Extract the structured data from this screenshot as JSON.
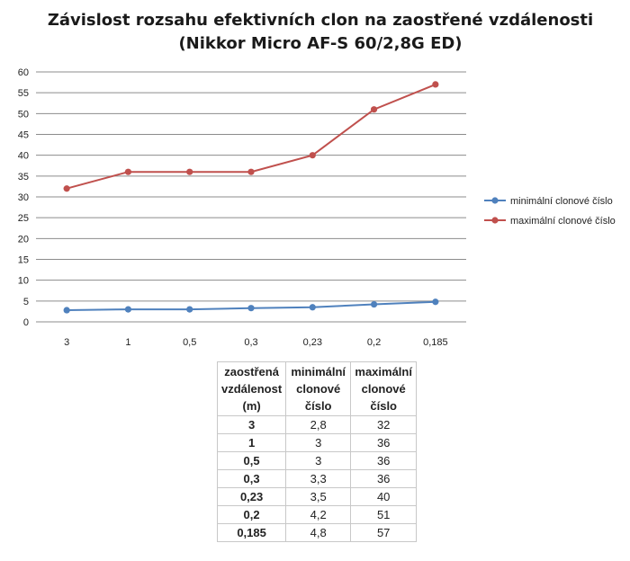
{
  "chart_data": {
    "type": "line",
    "title": [
      "Závislost rozsahu efektivních clon na zaostřené vzdálenosti",
      "(Nikkor Micro AF-S 60/2,8G ED)"
    ],
    "categories": [
      "3",
      "1",
      "0,5",
      "0,3",
      "0,23",
      "0,2",
      "0,185"
    ],
    "ylim": [
      0,
      60
    ],
    "yticks": [
      0,
      5,
      10,
      15,
      20,
      25,
      30,
      35,
      40,
      45,
      50,
      55,
      60
    ],
    "grid": true,
    "legend_position": "right",
    "series": [
      {
        "name": "minimální clonové číslo",
        "values": [
          2.8,
          3,
          3,
          3.3,
          3.5,
          4.2,
          4.8
        ],
        "color": "#4f81bd"
      },
      {
        "name": "maximální clonové číslo",
        "values": [
          32,
          36,
          36,
          36,
          40,
          51,
          57
        ],
        "color": "#c0504d"
      }
    ]
  },
  "table": {
    "headers": [
      [
        "zaostřená",
        "vzdálenost",
        "(m)"
      ],
      [
        "minimální",
        "clonové",
        "číslo"
      ],
      [
        "maximální",
        "clonové",
        "číslo"
      ]
    ],
    "rows": [
      [
        "3",
        "2,8",
        "32"
      ],
      [
        "1",
        "3",
        "36"
      ],
      [
        "0,5",
        "3",
        "36"
      ],
      [
        "0,3",
        "3,3",
        "36"
      ],
      [
        "0,23",
        "3,5",
        "40"
      ],
      [
        "0,2",
        "4,2",
        "51"
      ],
      [
        "0,185",
        "4,8",
        "57"
      ]
    ]
  }
}
